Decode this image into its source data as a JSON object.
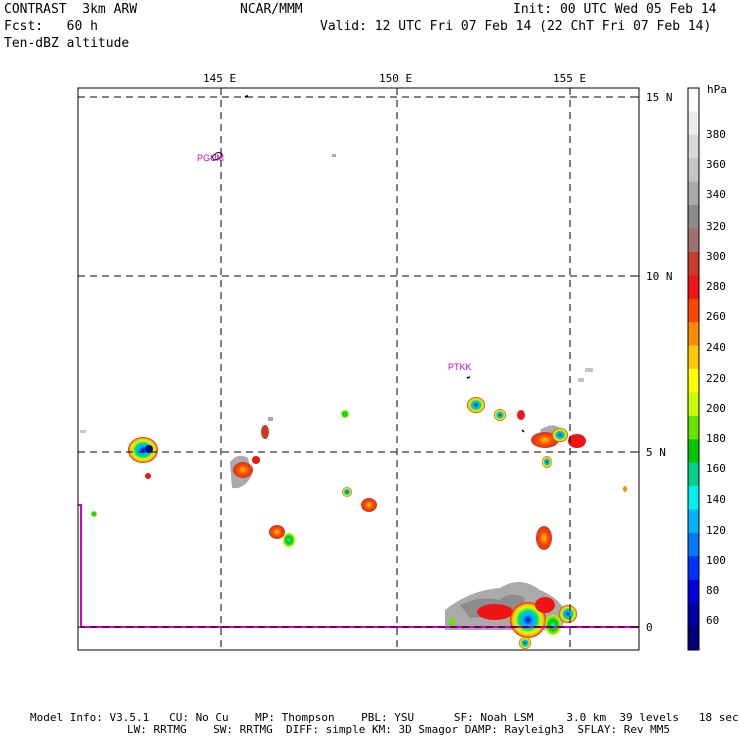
{
  "header": {
    "model": "CONTRAST  3km ARW",
    "forecast": "Fcst:   60 h",
    "field": "Ten-dBZ altitude",
    "org": "NCAR/MMM",
    "init": "Init: 00 UTC Wed 05 Feb 14",
    "valid": "Valid: 12 UTC Fri 07 Feb 14 (22 ChT Fri 07 Feb 14)"
  },
  "map": {
    "lon_labels": [
      "145 E",
      "150 E",
      "155 E"
    ],
    "lat_labels": [
      "15 N",
      "10 N",
      "5 N",
      "0"
    ],
    "stations": [
      "PGUM",
      "PTKK"
    ]
  },
  "colorbar": {
    "unit": "hPa",
    "labels": [
      "380",
      "360",
      "340",
      "320",
      "300",
      "280",
      "260",
      "240",
      "220",
      "200",
      "180",
      "160",
      "140",
      "120",
      "100",
      "80",
      "60"
    ],
    "colors": [
      "#ffffff",
      "#ececec",
      "#d8d8d8",
      "#c4c4c4",
      "#aaaaaa",
      "#8c8c8c",
      "#a07070",
      "#c83c28",
      "#f01414",
      "#ff4600",
      "#ff8c00",
      "#ffc800",
      "#ffff00",
      "#c8ff00",
      "#64e600",
      "#00c800",
      "#00d28c",
      "#00f0f0",
      "#00b4ff",
      "#0078ff",
      "#0032ff",
      "#0000dc",
      "#0000a0",
      "#000078"
    ]
  },
  "footer": {
    "line1": "Model Info: V3.5.1   CU: No Cu    MP: Thompson    PBL: YSU      SF: Noah LSM     3.0 km  39 levels   18 sec",
    "line2": "LW: RRTMG    SW: RRTMG  DIFF: simple KM: 3D Smagor DAMP: Rayleigh3  SFLAY: Rev MM5"
  },
  "colors": {
    "station": "#d000d0",
    "equator": "#d000d0"
  }
}
